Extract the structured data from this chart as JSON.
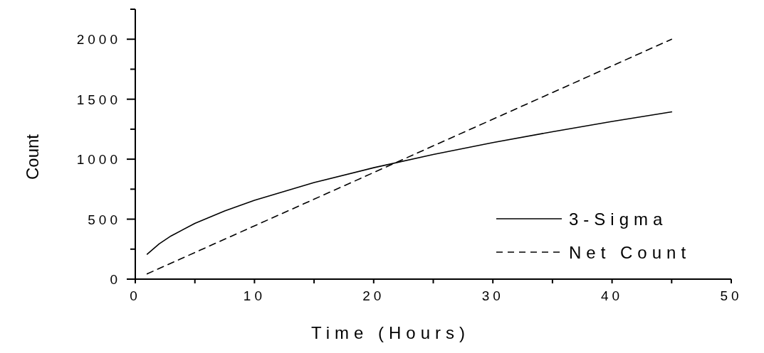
{
  "chart_data": {
    "type": "line",
    "xlabel": "Time (Hours)",
    "ylabel": "Count",
    "xlim": [
      0,
      50
    ],
    "ylim": [
      0,
      2250
    ],
    "xticks": [
      0,
      {
        "value": 5,
        "label": null
      },
      10,
      {
        "value": 15,
        "label": null
      },
      20,
      {
        "value": 25,
        "label": null
      },
      30,
      {
        "value": 35,
        "label": null
      },
      40,
      {
        "value": 45,
        "label": null
      },
      50
    ],
    "yticks": [
      0,
      {
        "value": 250,
        "label": null
      },
      500,
      {
        "value": 750,
        "label": null
      },
      1000,
      {
        "value": 1250,
        "label": null
      },
      1500,
      {
        "value": 1750,
        "label": null
      },
      2000,
      {
        "value": 2250,
        "label": null
      }
    ],
    "legend": "bottom right",
    "grid": false,
    "marker": "none",
    "series": [
      {
        "name": "3-Sigma",
        "color": "#000000",
        "line_style": "solid",
        "x": [
          1,
          2,
          3,
          5,
          7.5,
          10,
          15,
          20,
          25,
          30,
          35,
          40,
          45
        ],
        "values": [
          208,
          294,
          360,
          465,
          569,
          657,
          805,
          929,
          1039,
          1138,
          1229,
          1314,
          1394
        ]
      },
      {
        "name": "Net Count",
        "color": "#000000",
        "line_style": "dashed",
        "x": [
          1,
          45
        ],
        "values": [
          44,
          2000
        ]
      }
    ]
  }
}
